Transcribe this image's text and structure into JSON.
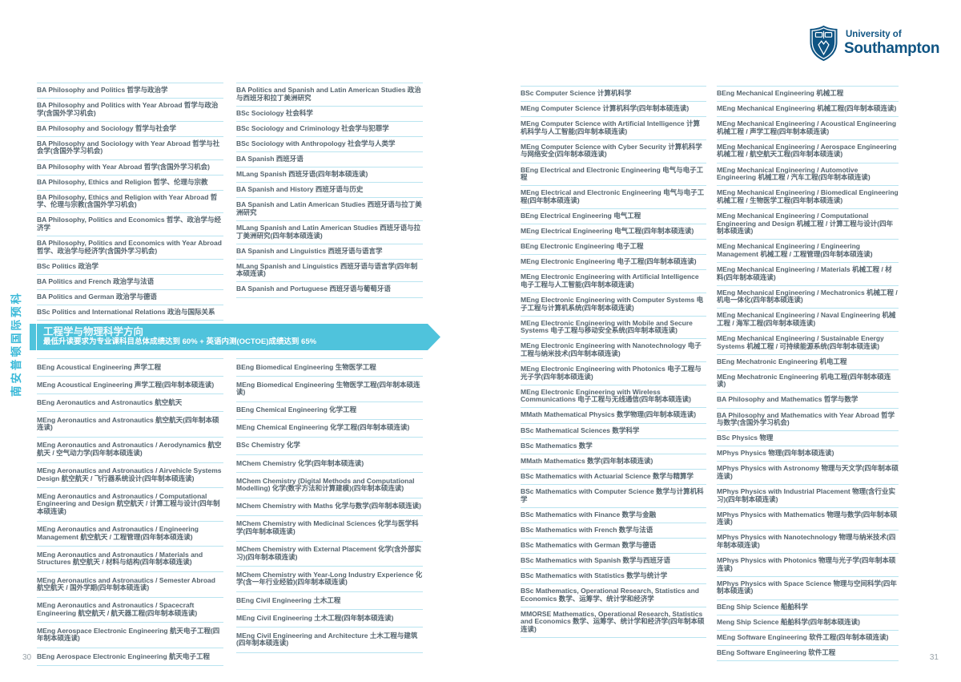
{
  "sidebar": {
    "vertical_text": "南安普顿国际预科"
  },
  "logo": {
    "line1": "University of",
    "line2": "Southampton"
  },
  "section_banner": {
    "title": "工程学与物理科学方向",
    "subtitle": "最低升读要求为专业课科目总体成绩达到 60% + 英语内测(OCTOE)成绩达到 65%"
  },
  "footer": {
    "left_page_number": "30",
    "right_page_number": "31"
  },
  "colors": {
    "accent_teal": "#4fc3dc",
    "divider": "#b9e4f0",
    "body_text": "#54646e",
    "logo_navy": "#0f5483"
  },
  "columns": {
    "humanities_col1": [
      "BA Philosophy and Politics 哲学与政治学",
      "BA Philosophy and Politics with Year Abroad 哲学与政治学(含国外学习机会)",
      "BA Philosophy and Sociology 哲学与社会学",
      "BA Philosophy and Sociology with Year Abroad 哲学与社会学(含国外学习机会)",
      "BA Philosophy with Year Abroad 哲学(含国外学习机会)",
      "BA Philosophy, Ethics and Religion 哲学、伦理与宗教",
      "BA Philosophy, Ethics and Religion with Year Abroad 哲学、伦理与宗教(含国外学习机会)",
      "BA Philosophy, Politics and Economics 哲学、政治学与经济学",
      "BA Philosophy, Politics and Economics with Year Abroad 哲学、政治学与经济学(含国外学习机会)",
      "BSc Politics 政治学",
      "BA Politics and French 政治学与法语",
      "BA Politics and German 政治学与德语",
      "BSc Politics and International Relations 政治与国际关系"
    ],
    "humanities_col2": [
      "BA Politics and Spanish and Latin American Studies 政治与西班牙和拉丁美洲研究",
      "BSc Sociology 社会科学",
      "BSc Sociology and Criminology 社会学与犯罪学",
      "BSc Sociology with Anthropology 社会学与人类学",
      "BA Spanish 西班牙语",
      "MLang Spanish 西班牙语(四年制本硕连读)",
      "BA Spanish and History 西班牙语与历史",
      "BA Spanish and Latin American Studies 西班牙语与拉丁美洲研究",
      "MLang Spanish and Latin American Studies 西班牙语与拉丁美洲研究(四年制本硕连读)",
      "BA Spanish and Linguistics 西班牙语与语言学",
      "MLang Spanish and Linguistics 西班牙语与语言学(四年制本硕连读)",
      "BA Spanish and Portuguese 西班牙语与葡萄牙语"
    ],
    "engineering_col1": [
      "BEng Acoustical Engineering 声学工程",
      "MEng Acoustical Engineering 声学工程(四年制本硕连读)",
      "BEng Aeronautics and Astronautics 航空航天",
      "MEng Aeronautics and Astronautics 航空航天(四年制本硕连读)",
      "MEng Aeronautics and Astronautics / Aerodynamics 航空航天 / 空气动力学(四年制本硕连读)",
      "MEng Aeronautics and Astronautics / Airvehicle Systems Design 航空航天 / 飞行器系统设计(四年制本硕连读)",
      "MEng Aeronautics and Astronautics / Computational Engineering and Design 航空航天 / 计算工程与设计(四年制本硕连读)",
      "MEng Aeronautics and Astronautics / Engineering Management 航空航天 / 工程管理(四年制本硕连读)",
      "MEng Aeronautics and Astronautics / Materials and Structures 航空航天 / 材料与结构(四年制本硕连读)",
      "MEng Aeronautics and Astronautics / Semester Abroad 航空航天 / 国外学期(四年制本硕连读)",
      "MEng Aeronautics and Astronautics / Spacecraft Engineering 航空航天 / 航天器工程(四年制本硕连读)",
      "MEng Aerospace Electronic Engineering 航天电子工程(四年制本硕连读)",
      "BEng Aerospace Electronic Engineering 航天电子工程"
    ],
    "engineering_col2": [
      "BEng Biomedical Engineering 生物医学工程",
      "MEng Biomedical Engineering 生物医学工程(四年制本硕连读)",
      "BEng Chemical Engineering 化学工程",
      "MEng Chemical Engineering 化学工程(四年制本硕连读)",
      "BSc Chemistry 化学",
      "MChem Chemistry 化学(四年制本硕连读)",
      "MChem Chemistry (Digital Methods and Computational Modelling) 化学(数字方法和计算建模)(四年制本硕连读)",
      "MChem Chemistry with Maths 化学与数学(四年制本硕连读)",
      "MChem Chemistry with Medicinal Sciences 化学与医学科学(四年制本硕连读)",
      "MChem Chemistry with External Placement 化学(含外部实习)(四年制本硕连读)",
      "MChem Chemistry with Year-Long Industry Experience 化学(含一年行业经验)(四年制本硕连读)",
      "BEng Civil Engineering 土木工程",
      "MEng Civil Engineering 土木工程(四年制本硕连读)",
      "MEng Civil Engineering and Architecture 土木工程与建筑(四年制本硕连读)"
    ],
    "right_page_col1": [
      "BSc Computer Science 计算机科学",
      "MEng Computer Science 计算机科学(四年制本硕连读)",
      "MEng Computer Science with Artificial Intelligence 计算机科学与人工智能(四年制本硕连读)",
      "MEng Computer Science with Cyber Security 计算机科学与网络安全(四年制本硕连读)",
      "BEng Electrical and Electronic Engineering 电气与电子工程",
      "MEng Electrical and Electronic Engineering 电气与电子工程(四年制本硕连读)",
      "BEng Electrical Engineering 电气工程",
      "MEng Electrical Engineering 电气工程(四年制本硕连读)",
      "BEng Electronic Engineering 电子工程",
      "MEng Electronic Engineering 电子工程(四年制本硕连读)",
      "MEng Electronic Engineering with Artificial Intelligence 电子工程与人工智能(四年制本硕连读)",
      "MEng Electronic Engineering with Computer Systems 电子工程与计算机系统(四年制本硕连读)",
      "MEng Electronic Engineering with Mobile and Secure Systems 电子工程与移动安全系统(四年制本硕连读)",
      "MEng Electronic Engineering with Nanotechnology 电子工程与纳米技术(四年制本硕连读)",
      "MEng Electronic Engineering with Photonics 电子工程与光子学(四年制本硕连读)",
      "MEng Electronic Engineering with Wireless Communications 电子工程与无线通信(四年制本硕连读)",
      "MMath Mathematical Physics 数学物理(四年制本硕连读)",
      "BSc Mathematical Sciences 数学科学",
      "BSc Mathematics 数学",
      "MMath Mathematics 数学(四年制本硕连读)",
      "BSc Mathematics with Actuarial Science 数学与精算学",
      "BSc Mathematics with Computer Science 数学与计算机科学",
      "BSc Mathematics with Finance 数学与金融",
      "BSc Mathematics with French 数学与法语",
      "BSc Mathematics with German 数学与德语",
      "BSc Mathematics with Spanish 数学与西班牙语",
      "BSc Mathematics with Statistics 数学与统计学",
      "BSc Mathematics, Operational Research, Statistics and Economics 数学、运筹学、统计学和经济学",
      "MMORSE Mathematics, Operational Research, Statistics and Economics 数学、运筹学、统计学和经济学(四年制本硕连读)"
    ],
    "right_page_col2": [
      "BEng Mechanical Engineering 机械工程",
      "MEng Mechanical Engineering 机械工程(四年制本硕连读)",
      "MEng Mechanical Engineering / Acoustical Engineering 机械工程 / 声学工程(四年制本硕连读)",
      "MEng Mechanical Engineering / Aerospace Engineering 机械工程 / 航空航天工程(四年制本硕连读)",
      "MEng Mechanical Engineering / Automotive Engineering 机械工程 / 汽车工程(四年制本硕连读)",
      "MEng Mechanical Engineering / Biomedical Engineering 机械工程 / 生物医学工程(四年制本硕连读)",
      "MEng Mechanical Engineering / Computational Engineering and Design 机械工程 / 计算工程与设计(四年制本硕连读)",
      "MEng Mechanical Engineering / Engineering Management 机械工程 / 工程管理(四年制本硕连读)",
      "MEng Mechanical Engineering / Materials 机械工程 / 材料(四年制本硕连读)",
      "MEng Mechanical Engineering / Mechatronics 机械工程 / 机电一体化(四年制本硕连读)",
      "MEng Mechanical Engineering / Naval Engineering 机械工程 / 海军工程(四年制本硕连读)",
      "MEng Mechanical Engineering / Sustainable Energy Systems 机械工程 / 可持续能源系统(四年制本硕连读)",
      "BEng Mechatronic Engineering 机电工程",
      "MEng Mechatronic Engineering 机电工程(四年制本硕连读)",
      "BA Philosophy and Mathematics 哲学与数学",
      "BA Philosophy and Mathematics with Year Abroad 哲学与数学(含国外学习机会)",
      "BSc Physics 物理",
      "MPhys Physics 物理(四年制本硕连读)",
      "MPhys Physics with Astronomy 物理与天文学(四年制本硕连读)",
      "MPhys Physics with Industrial Placement 物理(含行业实习)(四年制本硕连读)",
      "MPhys Physics with Mathematics 物理与数学(四年制本硕连读)",
      "MPhys Physics with Nanotechnology 物理与纳米技术(四年制本硕连读)",
      "MPhys Physics with Photonics 物理与光子学(四年制本硕连读)",
      "MPhys Physics with Space Science 物理与空间科学(四年制本硕连读)",
      "BEng Ship Science 船舶科学",
      "Meng Ship Science 船舶科学(四年制本硕连读)",
      "MEng Software Engineering 软件工程(四年制本硕连读)",
      "BEng Software Engineering 软件工程"
    ]
  }
}
